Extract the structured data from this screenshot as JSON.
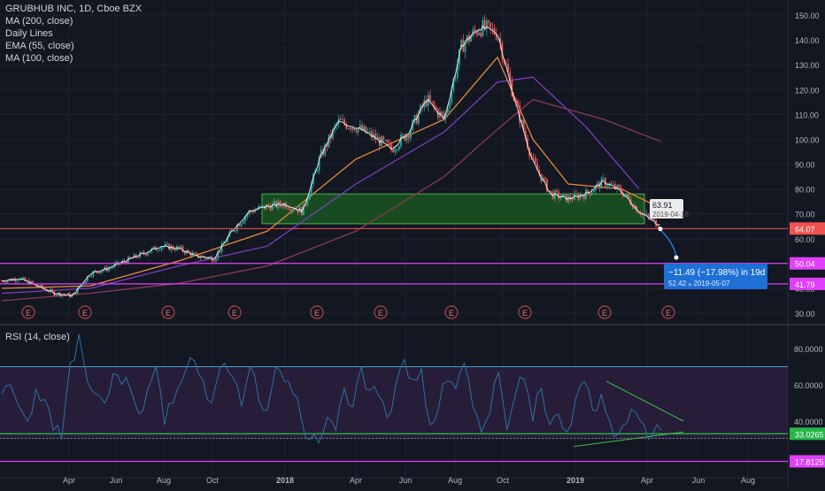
{
  "legend": {
    "title": "GRUBHUB INC, 1D, Cboe BZX",
    "indicators": [
      "MA (200, close)",
      "Daily Lines",
      "EMA (55, close)",
      "MA (100, close)"
    ],
    "rsi_title": "RSI (14, close)"
  },
  "colors": {
    "background": "#131722",
    "grid": "#1e222d",
    "up": "#26a69a",
    "down": "#ef5350",
    "ema55": "#e58a3c",
    "ma100": "#7b3fbf",
    "ma200": "#8a3a5a",
    "daily_line": "#ffffff",
    "magenta": "#e040fb",
    "zone": "#1b5e20",
    "zone_border": "#4caf50",
    "rsi_line": "#2e6fa8",
    "rsi_band": "#2a1e3b",
    "callout": "#1e6fd6",
    "price_tag": "#ef5350",
    "green_tag": "#26b547"
  },
  "chart_data": [
    {
      "type": "line",
      "title": "GRUBHUB INC, 1D, Cboe BZX",
      "xlabel": "",
      "ylabel": "",
      "x_tick_labels": [
        "Apr",
        "Jun",
        "Aug",
        "Oct",
        "2018",
        "Apr",
        "Jun",
        "Aug",
        "Oct",
        "2019",
        "Apr",
        "Jun",
        "Aug"
      ],
      "ylim": [
        30,
        152
      ],
      "y_ticks": [
        30,
        40,
        50,
        60,
        70,
        80,
        90,
        100,
        110,
        120,
        130,
        140,
        150
      ],
      "grid": true,
      "series": [
        {
          "name": "Price",
          "x": [
            0,
            20,
            40,
            60,
            80,
            100,
            120,
            140,
            160,
            180,
            200,
            220,
            240,
            260,
            280,
            300,
            320,
            340,
            360,
            380,
            400,
            420,
            440,
            460,
            480,
            500,
            520,
            540,
            560,
            580,
            600,
            620,
            640,
            660,
            680,
            700,
            720,
            740
          ],
          "y": [
            43,
            44,
            41,
            38,
            37,
            46,
            48,
            51,
            54,
            57,
            56,
            53,
            52,
            63,
            71,
            73,
            74,
            71,
            93,
            107,
            105,
            101,
            96,
            103,
            116,
            108,
            138,
            145,
            143,
            115,
            91,
            78,
            76,
            78,
            83,
            79,
            71,
            66
          ]
        },
        {
          "name": "EMA (55, close)",
          "x": [
            0,
            100,
            200,
            300,
            400,
            500,
            560,
            600,
            640,
            700,
            740
          ],
          "y": [
            40,
            41,
            51,
            63,
            92,
            108,
            133,
            100,
            82,
            80,
            73
          ]
        },
        {
          "name": "MA (100, close)",
          "x": [
            0,
            100,
            200,
            300,
            400,
            500,
            560,
            600,
            660,
            720
          ],
          "y": [
            38,
            40,
            49,
            57,
            82,
            103,
            123,
            125,
            105,
            80
          ]
        },
        {
          "name": "MA (200, close)",
          "x": [
            0,
            100,
            200,
            300,
            400,
            500,
            560,
            600,
            680,
            745
          ],
          "y": [
            35,
            38,
            42,
            49,
            63,
            85,
            104,
            116,
            108,
            99
          ]
        }
      ],
      "annotations": [
        {
          "label": "64.07",
          "value": 64.07
        },
        {
          "label": "50.04",
          "value": 50.04
        },
        {
          "label": "41.79",
          "value": 41.79
        },
        {
          "label": "63.91",
          "value": 63.91,
          "date": "2019-04-18"
        },
        {
          "callout": "−11.49 (−17.98%) in 19d",
          "detail": "52.42  ⁎  2019-05-07"
        }
      ],
      "zone": {
        "from": 66,
        "to": 78
      },
      "earnings_markers": [
        "E",
        "E",
        "E",
        "E",
        "E",
        "E",
        "E",
        "E",
        "E",
        "E"
      ]
    },
    {
      "type": "line",
      "title": "RSI (14, close)",
      "ylim": [
        10,
        90
      ],
      "y_ticks": [
        40,
        60,
        80
      ],
      "series": [
        {
          "name": "RSI (14, close)",
          "y": [
            55,
            60,
            48,
            40,
            58,
            52,
            35,
            30,
            72,
            88,
            62,
            55,
            50,
            66,
            60,
            58,
            44,
            57,
            70,
            38,
            50,
            62,
            75,
            66,
            52,
            60,
            72,
            64,
            48,
            70,
            52,
            46,
            70,
            62,
            55,
            41,
            30,
            28,
            42,
            35,
            58,
            48,
            70,
            57,
            54,
            42,
            60,
            74,
            63,
            69,
            38,
            47,
            62,
            58,
            72,
            48,
            34,
            44,
            67,
            35,
            55,
            63,
            40,
            58,
            38,
            44,
            34,
            52,
            62,
            46,
            55,
            40,
            33,
            39,
            45,
            38,
            33,
            35
          ]
        }
      ],
      "bands": [
        {
          "value": 70
        },
        {
          "value": 30
        }
      ],
      "annotations": [
        {
          "label": "33.0265",
          "value": 33.0265
        },
        {
          "label": "17.8125",
          "value": 17.8125
        }
      ]
    }
  ],
  "price_labels": [
    "150.00",
    "140.00",
    "130.00",
    "120.00",
    "110.00",
    "100.00",
    "90.00",
    "80.00",
    "70.00",
    "60.00",
    "50.00",
    "40.00",
    "30.00"
  ],
  "rsi_labels": [
    "80.0000",
    "60.0000",
    "40.0000"
  ],
  "callout": {
    "main": "−11.49 (−17.98%) in 19d",
    "sub": "52.42  ⁎  2019-05-07"
  },
  "marker_tag": {
    "price": "63.91",
    "date": "2019-04-18"
  }
}
